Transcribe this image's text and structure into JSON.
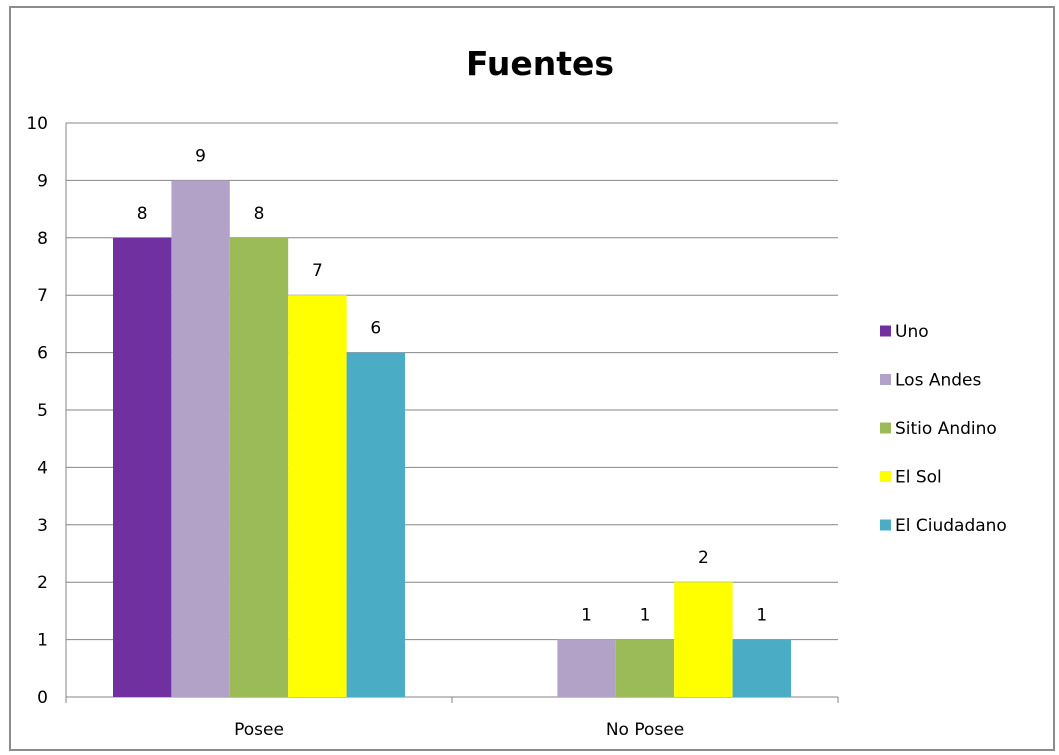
{
  "chart_data": {
    "type": "bar",
    "title": "Fuentes",
    "categories": [
      "Posee",
      "No Posee"
    ],
    "series": [
      {
        "name": "Uno",
        "values": [
          8,
          0
        ],
        "color": "#7030a0"
      },
      {
        "name": "Los Andes",
        "values": [
          9,
          1
        ],
        "color": "#b3a2c7"
      },
      {
        "name": "Sitio Andino",
        "values": [
          8,
          1
        ],
        "color": "#9bbb59"
      },
      {
        "name": "El Sol",
        "values": [
          7,
          2
        ],
        "color": "#ffff00"
      },
      {
        "name": "El Ciudadano",
        "values": [
          6,
          1
        ],
        "color": "#4bacc6"
      }
    ],
    "data_labels": [
      [
        "8",
        "9",
        "8",
        "7",
        "6"
      ],
      [
        "",
        "1",
        "1",
        "2",
        "1"
      ]
    ],
    "ylim": [
      0,
      10
    ],
    "yticks": [
      "0",
      "1",
      "2",
      "3",
      "4",
      "5",
      "6",
      "7",
      "8",
      "9",
      "10"
    ],
    "grid": true,
    "legend_position": "right"
  }
}
